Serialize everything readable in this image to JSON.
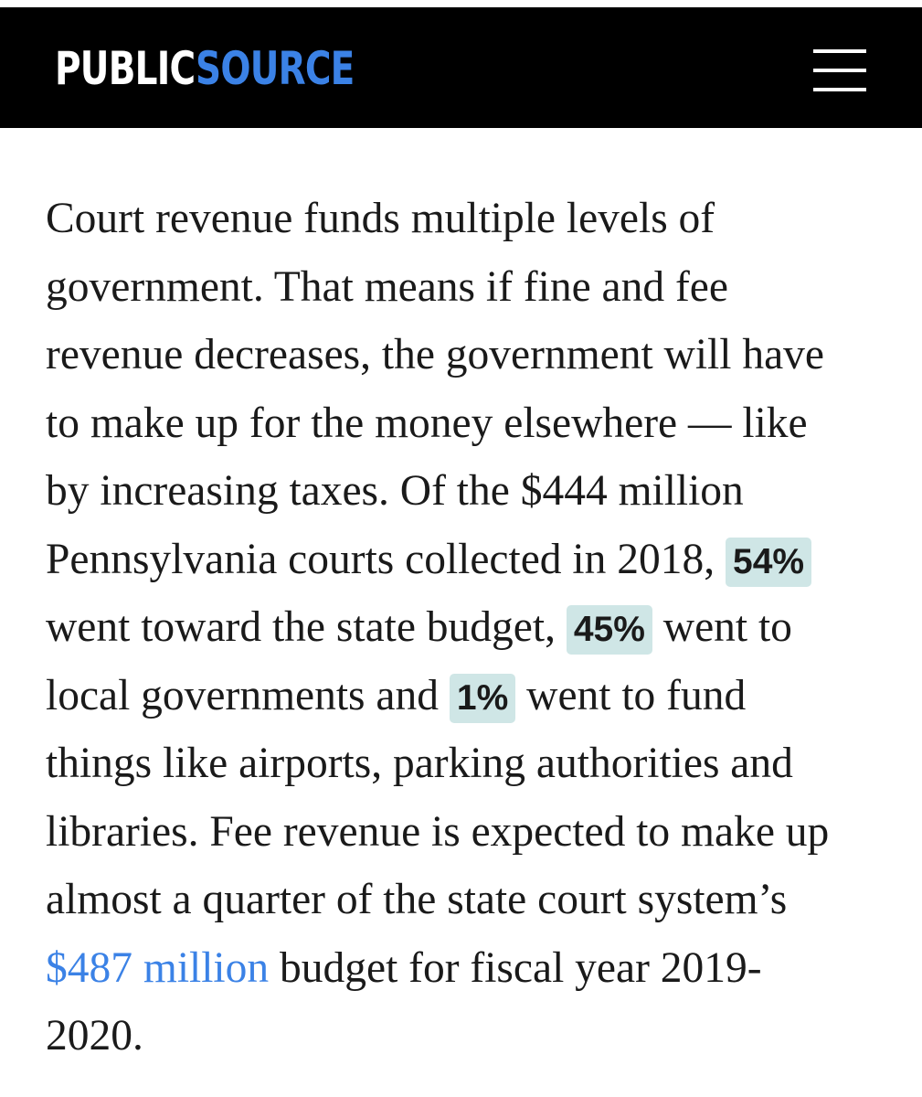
{
  "header": {
    "logo_part1": "PUBLIC",
    "logo_part2": "SOURCE",
    "menu_icon": "hamburger-menu-icon",
    "background_color": "#000000",
    "brand_color": "#3b82e6"
  },
  "article": {
    "line1": "Court revenue funds multiple levels of",
    "line2": "government. That means if fine and fee",
    "line3": "revenue decreases, the government will have",
    "line4": "to make up for the money elsewhere — like",
    "line5": "by increasing taxes. Of the $444 million",
    "line6_text": "Pennsylvania courts collected in 2018, ",
    "line6_highlight": "54%",
    "line7_text1": "went toward the state budget, ",
    "line7_highlight": "45%",
    "line7_text2": " went to",
    "line8_text1": "local governments and ",
    "line8_highlight": "1%",
    "line8_text2": " went to fund",
    "line9": "things like airports, parking authorities and",
    "line10": "libraries. Fee revenue is expected to make up",
    "line11": "almost a quarter of the state court system’s",
    "line12_link": "$487 million",
    "line12_text": " budget for fiscal year 2019-",
    "line13": "2020.",
    "highlight_color": "#cfe6e6",
    "link_color": "#3b82e6"
  }
}
